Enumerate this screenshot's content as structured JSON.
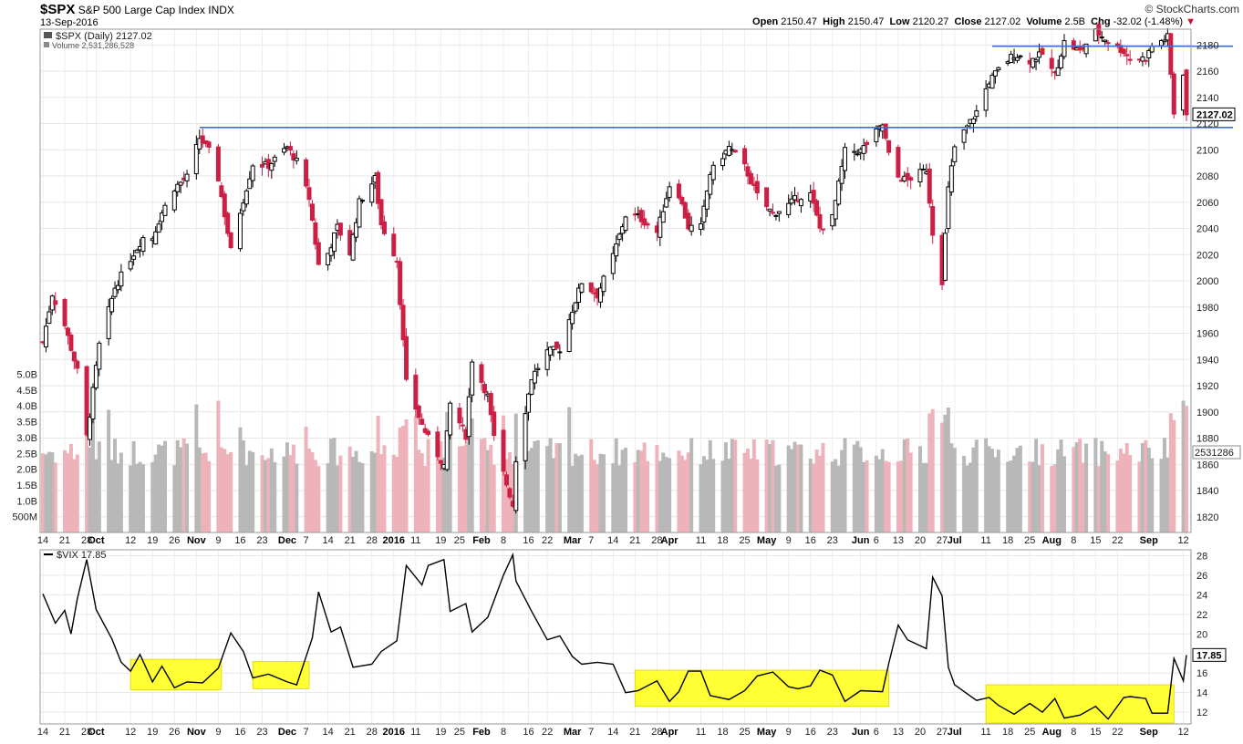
{
  "header": {
    "symbol": "$SPX",
    "name": "S&P 500 Large Cap Index",
    "exchange": "INDX",
    "date": "13-Sep-2016",
    "credit": "© StockCharts.com",
    "open_label": "Open",
    "open": "2150.47",
    "high_label": "High",
    "high": "2150.47",
    "low_label": "Low",
    "low": "2120.27",
    "close_label": "Close",
    "close": "2127.02",
    "volume_label": "Volume",
    "volume": "2.5B",
    "chg_label": "Chg",
    "chg": "-32.02 (-1.48%)",
    "chg_arrow": "▼"
  },
  "colors": {
    "up_candle": "#000000",
    "down_candle": "#cc1f44",
    "volume_up": "#b8b8b8",
    "volume_down": "#eeb2ba",
    "trendline": "#3a6fd1",
    "highlight": "#ffff33",
    "vix_line": "#000000"
  },
  "chart_data": [
    {
      "type": "candlestick",
      "legend": "$SPX (Daily) 2127.02",
      "legend_volume": "Volume 2,531,286,528",
      "price_label": "2127.02",
      "volume_label": "2531286",
      "y_ticks": [
        1820,
        1840,
        1860,
        1880,
        1900,
        1920,
        1940,
        1960,
        1980,
        2000,
        2020,
        2040,
        2060,
        2080,
        2100,
        2120,
        2140,
        2160,
        2180
      ],
      "ylim": [
        1808,
        2192
      ],
      "volume_ticks": [
        "500M",
        "1.0B",
        "1.5B",
        "2.0B",
        "2.5B",
        "3.0B",
        "3.5B",
        "4.0B",
        "4.5B",
        "5.0B"
      ],
      "volume_tick_values": [
        0.5,
        1.0,
        1.5,
        2.0,
        2.5,
        3.0,
        3.5,
        4.0,
        4.5,
        5.0
      ],
      "close_path": [
        [
          "2015-09-14",
          1953
        ],
        [
          "2015-09-17",
          1990
        ],
        [
          "2015-09-21",
          1966
        ],
        [
          "2015-09-25",
          1931
        ],
        [
          "2015-09-28",
          1881
        ],
        [
          "2015-10-02",
          1951
        ],
        [
          "2015-10-07",
          1995
        ],
        [
          "2015-10-12",
          2017
        ],
        [
          "2015-10-16",
          2033
        ],
        [
          "2015-10-19",
          2033
        ],
        [
          "2015-10-22",
          2052
        ],
        [
          "2015-10-26",
          2071
        ],
        [
          "2015-10-30",
          2079
        ],
        [
          "2015-11-03",
          2109
        ],
        [
          "2015-11-06",
          2099
        ],
        [
          "2015-11-09",
          2078
        ],
        [
          "2015-11-13",
          2023
        ],
        [
          "2015-11-16",
          2053
        ],
        [
          "2015-11-20",
          2089
        ],
        [
          "2015-11-25",
          2088
        ],
        [
          "2015-12-01",
          2102
        ],
        [
          "2015-12-04",
          2091
        ],
        [
          "2015-12-08",
          2063
        ],
        [
          "2015-12-11",
          2012
        ],
        [
          "2015-12-14",
          2021
        ],
        [
          "2015-12-17",
          2041
        ],
        [
          "2015-12-21",
          2021
        ],
        [
          "2015-12-24",
          2060
        ],
        [
          "2015-12-29",
          2078
        ],
        [
          "2015-12-31",
          2043
        ],
        [
          "2016-01-05",
          2016
        ],
        [
          "2016-01-08",
          1922
        ],
        [
          "2016-01-13",
          1890
        ],
        [
          "2016-01-15",
          1880
        ],
        [
          "2016-01-20",
          1859
        ],
        [
          "2016-01-22",
          1906
        ],
        [
          "2016-01-27",
          1882
        ],
        [
          "2016-01-29",
          1940
        ],
        [
          "2016-02-03",
          1912
        ],
        [
          "2016-02-05",
          1880
        ],
        [
          "2016-02-08",
          1853
        ],
        [
          "2016-02-11",
          1829
        ],
        [
          "2016-02-12",
          1864
        ],
        [
          "2016-02-17",
          1926
        ],
        [
          "2016-02-22",
          1946
        ],
        [
          "2016-02-26",
          1948
        ],
        [
          "2016-03-01",
          1978
        ],
        [
          "2016-03-04",
          1999
        ],
        [
          "2016-03-09",
          1989
        ],
        [
          "2016-03-14",
          2019
        ],
        [
          "2016-03-18",
          2050
        ],
        [
          "2016-03-22",
          2049
        ],
        [
          "2016-03-28",
          2037
        ],
        [
          "2016-04-01",
          2073
        ],
        [
          "2016-04-04",
          2066
        ],
        [
          "2016-04-07",
          2041
        ],
        [
          "2016-04-11",
          2041
        ],
        [
          "2016-04-14",
          2082
        ],
        [
          "2016-04-20",
          2102
        ],
        [
          "2016-04-25",
          2087
        ],
        [
          "2016-04-29",
          2065
        ],
        [
          "2016-05-04",
          2051
        ],
        [
          "2016-05-09",
          2058
        ],
        [
          "2016-05-12",
          2064
        ],
        [
          "2016-05-16",
          2066
        ],
        [
          "2016-05-19",
          2040
        ],
        [
          "2016-05-23",
          2048
        ],
        [
          "2016-05-27",
          2099
        ],
        [
          "2016-06-01",
          2099
        ],
        [
          "2016-06-08",
          2119
        ],
        [
          "2016-06-10",
          2096
        ],
        [
          "2016-06-13",
          2079
        ],
        [
          "2016-06-16",
          2077
        ],
        [
          "2016-06-22",
          2085
        ],
        [
          "2016-06-24",
          2037
        ],
        [
          "2016-06-27",
          2000
        ],
        [
          "2016-06-29",
          2070
        ],
        [
          "2016-07-01",
          2102
        ],
        [
          "2016-07-08",
          2129
        ],
        [
          "2016-07-12",
          2152
        ],
        [
          "2016-07-15",
          2161
        ],
        [
          "2016-07-20",
          2173
        ],
        [
          "2016-07-25",
          2168
        ],
        [
          "2016-07-29",
          2173
        ],
        [
          "2016-08-02",
          2157
        ],
        [
          "2016-08-05",
          2182
        ],
        [
          "2016-08-10",
          2175
        ],
        [
          "2016-08-15",
          2190
        ],
        [
          "2016-08-19",
          2183
        ],
        [
          "2016-08-24",
          2175
        ],
        [
          "2016-08-26",
          2169
        ],
        [
          "2016-08-31",
          2170
        ],
        [
          "2016-09-02",
          2179
        ],
        [
          "2016-09-07",
          2186
        ],
        [
          "2016-09-09",
          2128
        ],
        [
          "2016-09-12",
          2159
        ],
        [
          "2016-09-13",
          2127
        ]
      ],
      "trendlines": [
        {
          "from": [
            "2015-11-03",
            2117
          ],
          "to": [
            "2016-09-13",
            2117
          ]
        },
        {
          "from": [
            "2016-07-13",
            2179
          ],
          "to": [
            "2016-09-13",
            2179
          ]
        }
      ]
    },
    {
      "type": "line",
      "legend": "$VIX 17.85",
      "price_label": "17.85",
      "y_ticks": [
        12,
        14,
        16,
        18,
        20,
        22,
        24,
        26,
        28
      ],
      "ylim": [
        10.8,
        28.6
      ],
      "values": [
        [
          "2015-09-14",
          24.1
        ],
        [
          "2015-09-18",
          21.1
        ],
        [
          "2015-09-21",
          22.4
        ],
        [
          "2015-09-23",
          20.0
        ],
        [
          "2015-09-25",
          23.6
        ],
        [
          "2015-09-28",
          27.6
        ],
        [
          "2015-10-01",
          22.5
        ],
        [
          "2015-10-06",
          19.5
        ],
        [
          "2015-10-09",
          17.1
        ],
        [
          "2015-10-12",
          16.2
        ],
        [
          "2015-10-15",
          17.9
        ],
        [
          "2015-10-19",
          15.1
        ],
        [
          "2015-10-22",
          16.7
        ],
        [
          "2015-10-26",
          14.5
        ],
        [
          "2015-10-30",
          15.1
        ],
        [
          "2015-11-04",
          15.0
        ],
        [
          "2015-11-09",
          16.5
        ],
        [
          "2015-11-13",
          20.1
        ],
        [
          "2015-11-17",
          18.2
        ],
        [
          "2015-11-20",
          15.5
        ],
        [
          "2015-11-25",
          15.9
        ],
        [
          "2015-12-01",
          15.1
        ],
        [
          "2015-12-04",
          14.8
        ],
        [
          "2015-12-09",
          19.6
        ],
        [
          "2015-12-11",
          24.3
        ],
        [
          "2015-12-15",
          20.2
        ],
        [
          "2015-12-18",
          20.7
        ],
        [
          "2015-12-22",
          16.6
        ],
        [
          "2015-12-28",
          16.9
        ],
        [
          "2015-12-31",
          18.2
        ],
        [
          "2016-01-05",
          19.3
        ],
        [
          "2016-01-08",
          27.0
        ],
        [
          "2016-01-13",
          25.0
        ],
        [
          "2016-01-15",
          27.0
        ],
        [
          "2016-01-20",
          27.6
        ],
        [
          "2016-01-22",
          22.3
        ],
        [
          "2016-01-27",
          23.1
        ],
        [
          "2016-01-29",
          20.2
        ],
        [
          "2016-02-03",
          21.7
        ],
        [
          "2016-02-05",
          23.4
        ],
        [
          "2016-02-08",
          26.0
        ],
        [
          "2016-02-11",
          28.1
        ],
        [
          "2016-02-12",
          25.4
        ],
        [
          "2016-02-17",
          22.3
        ],
        [
          "2016-02-22",
          19.4
        ],
        [
          "2016-02-26",
          19.8
        ],
        [
          "2016-03-01",
          17.7
        ],
        [
          "2016-03-04",
          16.9
        ],
        [
          "2016-03-09",
          17.1
        ],
        [
          "2016-03-14",
          16.9
        ],
        [
          "2016-03-18",
          14.0
        ],
        [
          "2016-03-22",
          14.2
        ],
        [
          "2016-03-28",
          15.2
        ],
        [
          "2016-04-01",
          13.1
        ],
        [
          "2016-04-04",
          14.1
        ],
        [
          "2016-04-07",
          16.2
        ],
        [
          "2016-04-11",
          16.2
        ],
        [
          "2016-04-14",
          13.7
        ],
        [
          "2016-04-20",
          13.3
        ],
        [
          "2016-04-25",
          14.2
        ],
        [
          "2016-04-29",
          15.7
        ],
        [
          "2016-05-04",
          16.1
        ],
        [
          "2016-05-09",
          14.6
        ],
        [
          "2016-05-12",
          14.4
        ],
        [
          "2016-05-16",
          14.7
        ],
        [
          "2016-05-19",
          16.3
        ],
        [
          "2016-05-23",
          15.8
        ],
        [
          "2016-05-27",
          13.1
        ],
        [
          "2016-06-01",
          14.2
        ],
        [
          "2016-06-08",
          14.1
        ],
        [
          "2016-06-10",
          17.0
        ],
        [
          "2016-06-13",
          20.9
        ],
        [
          "2016-06-16",
          19.4
        ],
        [
          "2016-06-22",
          18.5
        ],
        [
          "2016-06-24",
          25.8
        ],
        [
          "2016-06-27",
          23.9
        ],
        [
          "2016-06-29",
          16.6
        ],
        [
          "2016-07-01",
          14.8
        ],
        [
          "2016-07-08",
          13.2
        ],
        [
          "2016-07-12",
          13.5
        ],
        [
          "2016-07-15",
          12.7
        ],
        [
          "2016-07-20",
          11.8
        ],
        [
          "2016-07-25",
          12.9
        ],
        [
          "2016-07-29",
          12.0
        ],
        [
          "2016-08-02",
          13.4
        ],
        [
          "2016-08-05",
          11.4
        ],
        [
          "2016-08-10",
          11.7
        ],
        [
          "2016-08-15",
          12.6
        ],
        [
          "2016-08-19",
          11.3
        ],
        [
          "2016-08-24",
          13.5
        ],
        [
          "2016-08-26",
          13.6
        ],
        [
          "2016-08-31",
          13.4
        ],
        [
          "2016-09-02",
          11.9
        ],
        [
          "2016-09-07",
          11.9
        ],
        [
          "2016-09-09",
          17.5
        ],
        [
          "2016-09-12",
          15.2
        ],
        [
          "2016-09-13",
          17.85
        ]
      ],
      "highlight_bands": [
        {
          "from": "2015-10-12",
          "to": "2015-11-10",
          "low": 14.3,
          "high": 17.4
        },
        {
          "from": "2015-11-20",
          "to": "2015-12-08",
          "low": 14.4,
          "high": 17.2
        },
        {
          "from": "2016-03-21",
          "to": "2016-06-10",
          "low": 12.6,
          "high": 16.3
        },
        {
          "from": "2016-07-11",
          "to": "2016-09-09",
          "low": 10.9,
          "high": 14.8
        }
      ]
    }
  ],
  "x_axis": {
    "labels": [
      {
        "text": "14",
        "date": "2015-09-14"
      },
      {
        "text": "21",
        "date": "2015-09-21"
      },
      {
        "text": "28",
        "date": "2015-09-28"
      },
      {
        "text": "Oct",
        "date": "2015-10-01",
        "bold": true
      },
      {
        "text": "12",
        "date": "2015-10-12"
      },
      {
        "text": "19",
        "date": "2015-10-19"
      },
      {
        "text": "26",
        "date": "2015-10-26"
      },
      {
        "text": "Nov",
        "date": "2015-11-02",
        "bold": true
      },
      {
        "text": "9",
        "date": "2015-11-09"
      },
      {
        "text": "16",
        "date": "2015-11-16"
      },
      {
        "text": "23",
        "date": "2015-11-23"
      },
      {
        "text": "Dec",
        "date": "2015-12-01",
        "bold": true
      },
      {
        "text": "7",
        "date": "2015-12-07"
      },
      {
        "text": "14",
        "date": "2015-12-14"
      },
      {
        "text": "21",
        "date": "2015-12-21"
      },
      {
        "text": "28",
        "date": "2015-12-28"
      },
      {
        "text": "2016",
        "date": "2016-01-04",
        "bold": true
      },
      {
        "text": "11",
        "date": "2016-01-11"
      },
      {
        "text": "19",
        "date": "2016-01-19"
      },
      {
        "text": "25",
        "date": "2016-01-25"
      },
      {
        "text": "Feb",
        "date": "2016-02-01",
        "bold": true
      },
      {
        "text": "8",
        "date": "2016-02-08"
      },
      {
        "text": "16",
        "date": "2016-02-16"
      },
      {
        "text": "22",
        "date": "2016-02-22"
      },
      {
        "text": "Mar",
        "date": "2016-03-01",
        "bold": true
      },
      {
        "text": "7",
        "date": "2016-03-07"
      },
      {
        "text": "14",
        "date": "2016-03-14"
      },
      {
        "text": "21",
        "date": "2016-03-21"
      },
      {
        "text": "28",
        "date": "2016-03-28"
      },
      {
        "text": "Apr",
        "date": "2016-04-01",
        "bold": true
      },
      {
        "text": "11",
        "date": "2016-04-11"
      },
      {
        "text": "18",
        "date": "2016-04-18"
      },
      {
        "text": "25",
        "date": "2016-04-25"
      },
      {
        "text": "May",
        "date": "2016-05-02",
        "bold": true
      },
      {
        "text": "9",
        "date": "2016-05-09"
      },
      {
        "text": "16",
        "date": "2016-05-16"
      },
      {
        "text": "23",
        "date": "2016-05-23"
      },
      {
        "text": "Jun",
        "date": "2016-06-01",
        "bold": true
      },
      {
        "text": "6",
        "date": "2016-06-06"
      },
      {
        "text": "13",
        "date": "2016-06-13"
      },
      {
        "text": "20",
        "date": "2016-06-20"
      },
      {
        "text": "27",
        "date": "2016-06-27"
      },
      {
        "text": "Jul",
        "date": "2016-07-01",
        "bold": true
      },
      {
        "text": "11",
        "date": "2016-07-11"
      },
      {
        "text": "18",
        "date": "2016-07-18"
      },
      {
        "text": "25",
        "date": "2016-07-25"
      },
      {
        "text": "Aug",
        "date": "2016-08-01",
        "bold": true
      },
      {
        "text": "8",
        "date": "2016-08-08"
      },
      {
        "text": "15",
        "date": "2016-08-15"
      },
      {
        "text": "22",
        "date": "2016-08-22"
      },
      {
        "text": "Sep",
        "date": "2016-09-01",
        "bold": true
      },
      {
        "text": "12",
        "date": "2016-09-12"
      }
    ]
  }
}
